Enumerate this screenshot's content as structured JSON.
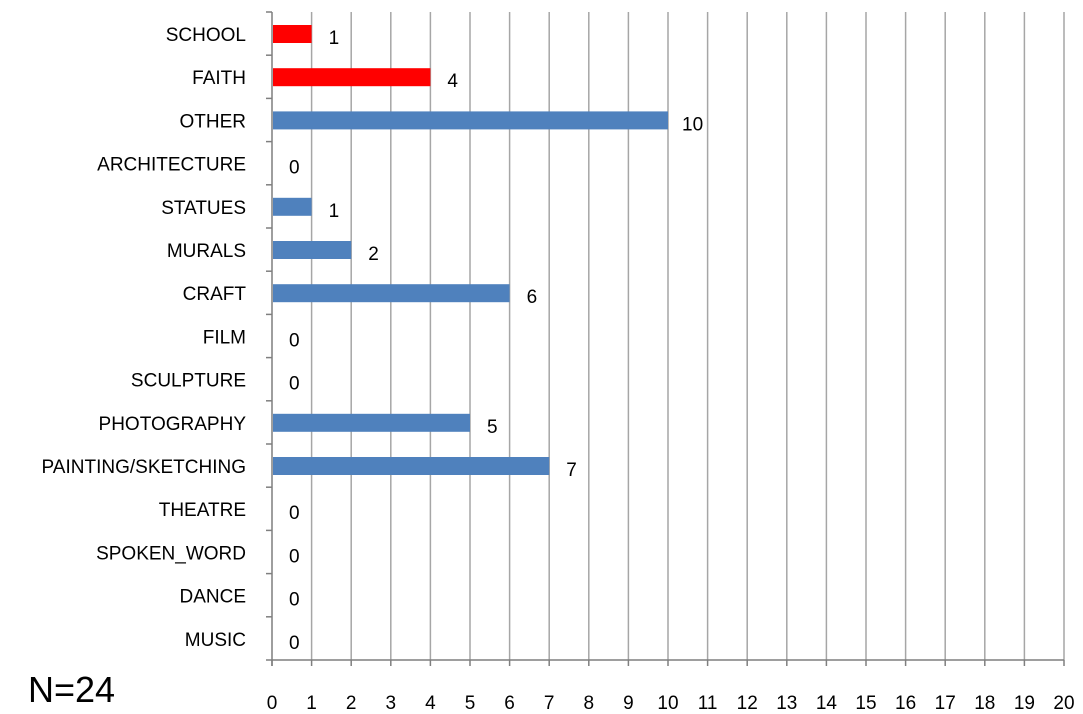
{
  "chart_data": {
    "type": "bar",
    "orientation": "horizontal",
    "categories": [
      "SCHOOL",
      "FAITH",
      "OTHER",
      "ARCHITECTURE",
      "STATUES",
      "MURALS",
      "CRAFT",
      "FILM",
      "SCULPTURE",
      "PHOTOGRAPHY",
      "PAINTING/SKETCHING",
      "THEATRE",
      "SPOKEN_WORD",
      "DANCE",
      "MUSIC"
    ],
    "values": [
      1,
      4,
      10,
      0,
      1,
      2,
      6,
      0,
      0,
      5,
      7,
      0,
      0,
      0,
      0
    ],
    "bar_colors": [
      "#ff0000",
      "#ff0000",
      "#4f81bd",
      "#4f81bd",
      "#4f81bd",
      "#4f81bd",
      "#4f81bd",
      "#4f81bd",
      "#4f81bd",
      "#4f81bd",
      "#4f81bd",
      "#4f81bd",
      "#4f81bd",
      "#4f81bd",
      "#4f81bd"
    ],
    "xlim": [
      0,
      20
    ],
    "x_ticks": [
      "0",
      "1",
      "2",
      "3",
      "4",
      "5",
      "6",
      "7",
      "8",
      "9",
      "10",
      "11",
      "12",
      "13",
      "14",
      "15",
      "16",
      "17",
      "18",
      "19",
      "20"
    ],
    "grid": "vertical",
    "data_labels": true,
    "title": "",
    "xlabel": "",
    "ylabel": ""
  },
  "note": "N=24",
  "colors": {
    "grid": "#a6a6a6",
    "axis": "#7f7f7f"
  }
}
